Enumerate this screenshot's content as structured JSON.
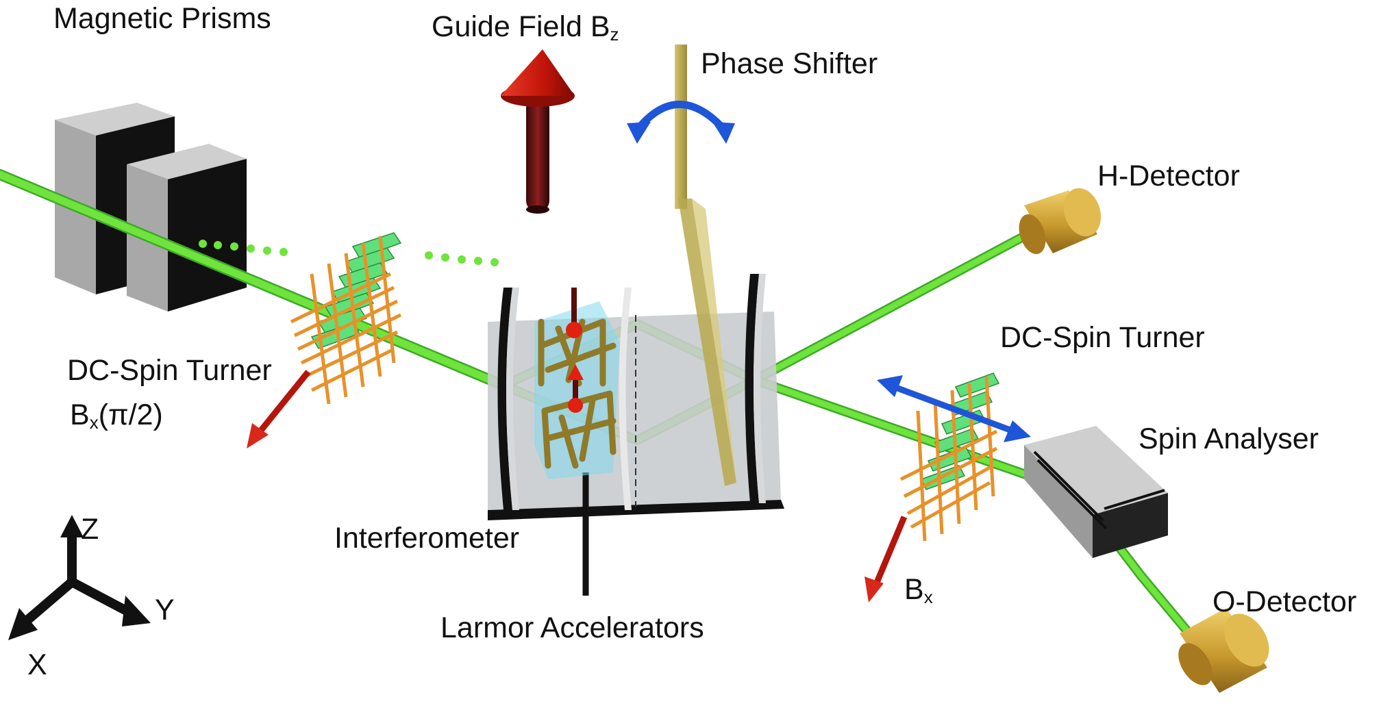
{
  "labels": {
    "magnetic_prisms": "Magnetic Prisms",
    "guide_field": "Guide Field B",
    "guide_field_sub": "z",
    "phase_shifter": "Phase Shifter",
    "h_detector": "H-Detector",
    "dc_spin_turner_left": "DC-Spin Turner",
    "bx_pi2_main": "B",
    "bx_pi2_sub": "x",
    "bx_pi2_rest": "(π/2)",
    "dc_spin_turner_right": "DC-Spin Turner",
    "spin_analyser": "Spin Analyser",
    "interferometer": "Interferometer",
    "larmor_accelerators": "Larmor Accelerators",
    "bx_main": "B",
    "bx_sub": "x",
    "o_detector": "O-Detector",
    "axis_z": "Z",
    "axis_y": "Y",
    "axis_x": "X"
  },
  "colors": {
    "beam": "#6ee43c",
    "beam_edge": "#3fa82a",
    "prism": "#8f8f8f",
    "coil": "#e8912a",
    "coil_block": "#5fe07a",
    "guide_arrow": "#d01a10",
    "rotation_arrow": "#1f55d8",
    "detector": "#d6a83a",
    "phase_shifter": "#b8a94e",
    "interferometer_plate": "#c9ccce"
  }
}
